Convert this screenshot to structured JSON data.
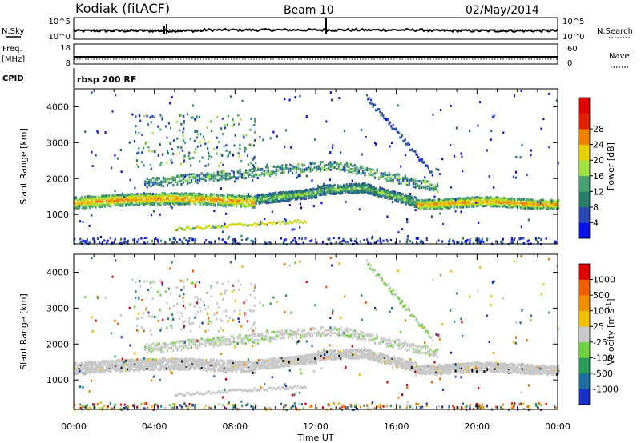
{
  "header": {
    "station": "Kodiak (fitACF)",
    "beam": "Beam 10",
    "date": "02/May/2014"
  },
  "strips": {
    "nsky_label": "N.Sky",
    "nsky_ticks": [
      "10^5",
      "10^0"
    ],
    "nsearch_ticks": [
      "10^5",
      "10^0"
    ],
    "nsearch_label": "N.Search",
    "freq_label": "Freq.",
    "freq_unit": "[MHz]",
    "freq_ticks": [
      "18",
      "8"
    ],
    "nave_ticks": [
      "60",
      "0"
    ],
    "nave_label": "Nave",
    "cpid_label": "CPID",
    "cpid_value": "rbsp 200 RF"
  },
  "chart_data": [
    {
      "type": "heatmap",
      "parameter": "Power",
      "ylabel": "Slant Range [km]",
      "xlabel": "Time UT",
      "ylim": [
        180,
        4500
      ],
      "yticks": [
        "1000",
        "2000",
        "3000",
        "4000"
      ],
      "x_tick_labels": [
        "00:00",
        "04:00",
        "08:00",
        "12:00",
        "16:00",
        "20:00",
        "00:00"
      ],
      "colorbar": {
        "label": "Power [dB]",
        "ticks": [
          "4",
          "8",
          "12",
          "16",
          "20",
          "24",
          "28"
        ],
        "colors": [
          "#0a14e6",
          "#2848b4",
          "#2a7a6a",
          "#4aa070",
          "#a0e040",
          "#e8d000",
          "#f08000",
          "#e02000",
          "#e00000"
        ]
      },
      "features": [
        {
          "name": "main band",
          "range_km": [
            1100,
            1750
          ],
          "power_db": 26
        },
        {
          "name": "rising band",
          "range_km": [
            1800,
            2600
          ],
          "power_db": 14
        },
        {
          "name": "upper patch",
          "range_km": [
            3000,
            3700
          ],
          "power_db": 16
        },
        {
          "name": "late patch",
          "range_km": [
            3200,
            4200
          ],
          "power_db": 8
        }
      ]
    },
    {
      "type": "heatmap",
      "parameter": "Velocity",
      "ylabel": "Slant Range [km]",
      "xlabel": "Time UT",
      "ylim": [
        180,
        4500
      ],
      "yticks": [
        "1000",
        "2000",
        "3000",
        "4000"
      ],
      "x_tick_labels": [
        "00:00",
        "04:00",
        "08:00",
        "12:00",
        "16:00",
        "20:00",
        "00:00"
      ],
      "colorbar": {
        "label": "Velocity [m s^-1]",
        "ticks": [
          "1000",
          "500",
          "100",
          "25",
          "-25",
          "-100",
          "-500",
          "-1000"
        ],
        "colors": [
          "#1830c8",
          "#1c6ea0",
          "#2a9a5a",
          "#70d040",
          "#c8c8c8",
          "#f0c000",
          "#f09000",
          "#f06000",
          "#e00000"
        ]
      }
    }
  ],
  "axes": {
    "x_title": "Time UT",
    "y_title": "Slant Range [km]",
    "power_unit": "Power [dB]",
    "velocity_unit": "Velocity [m s",
    "velocity_exp": "-1",
    "velocity_close": "]"
  }
}
